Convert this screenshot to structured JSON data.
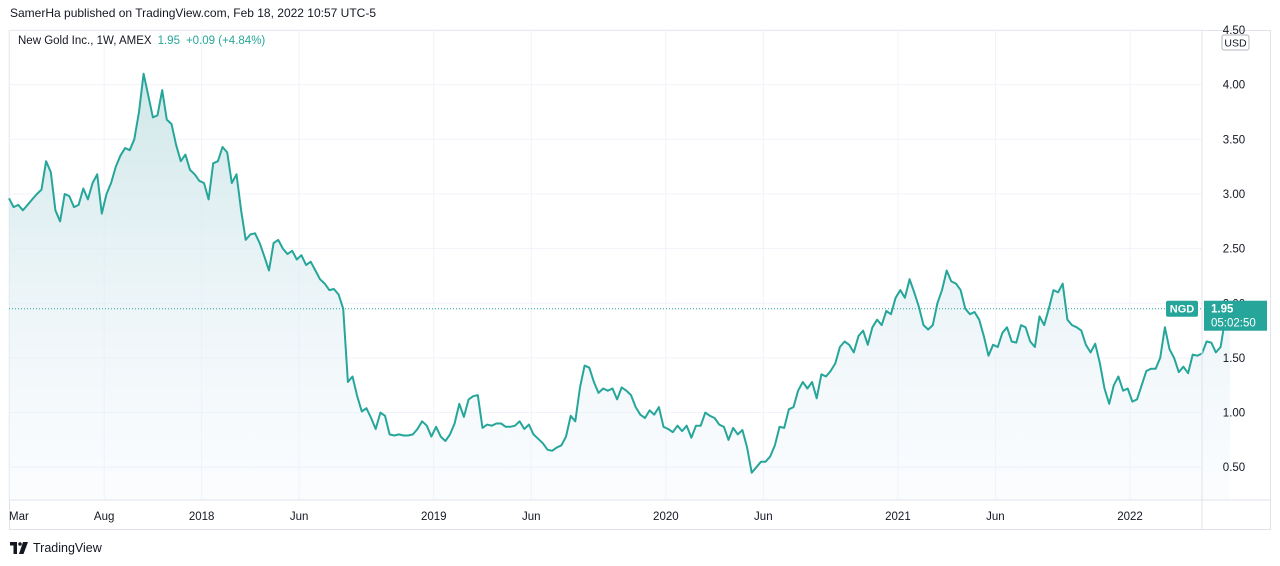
{
  "published_line": "SamerHa published on TradingView.com, Feb 18, 2022 10:57 UTC-5",
  "legend": {
    "symbol": "New Gold Inc., 1W, AMEX",
    "last": "1.95",
    "change": "+0.09 (+4.84%)"
  },
  "footer": {
    "brand": "TradingView"
  },
  "colors": {
    "line": "#26a69a",
    "fill_top": "#cfe8e8",
    "fill_bottom": "#ffffff",
    "grid": "#f0f3fa",
    "axis_text": "#131722",
    "label_bg": "#26a69a"
  },
  "chart_data": {
    "type": "area",
    "currency": "USD",
    "ylim": [
      0.2,
      4.5
    ],
    "yticks": [
      0.5,
      1.0,
      1.5,
      2.0,
      2.5,
      3.0,
      3.5,
      4.0,
      4.5
    ],
    "ytick_labels": [
      "0.50",
      "1.00",
      "1.50",
      "2.00",
      "2.50",
      "3.00",
      "3.50",
      "4.00",
      "4.50"
    ],
    "xlim": [
      2017.17,
      2022.31
    ],
    "xticks": [
      {
        "label": "Mar",
        "t": 2017.17
      },
      {
        "label": "Aug",
        "t": 2017.58
      },
      {
        "label": "2018",
        "t": 2018.0
      },
      {
        "label": "Jun",
        "t": 2018.42
      },
      {
        "label": "2019",
        "t": 2019.0
      },
      {
        "label": "Jun",
        "t": 2019.42
      },
      {
        "label": "2020",
        "t": 2020.0
      },
      {
        "label": "Jun",
        "t": 2020.42
      },
      {
        "label": "2021",
        "t": 2021.0
      },
      {
        "label": "Jun",
        "t": 2021.42
      },
      {
        "label": "2022",
        "t": 2022.0
      }
    ],
    "price_label": {
      "symbol": "NGD",
      "price": "1.95",
      "countdown": "05:02:50",
      "value": 1.95
    },
    "series": [
      {
        "values": [
          [
            2017.17,
            2.96
          ],
          [
            2017.19,
            2.88
          ],
          [
            2017.21,
            2.9
          ],
          [
            2017.23,
            2.85
          ],
          [
            2017.25,
            2.9
          ],
          [
            2017.27,
            2.95
          ],
          [
            2017.29,
            3.0
          ],
          [
            2017.31,
            3.04
          ],
          [
            2017.33,
            3.3
          ],
          [
            2017.35,
            3.2
          ],
          [
            2017.37,
            2.85
          ],
          [
            2017.39,
            2.75
          ],
          [
            2017.41,
            3.0
          ],
          [
            2017.43,
            2.98
          ],
          [
            2017.45,
            2.88
          ],
          [
            2017.47,
            2.9
          ],
          [
            2017.49,
            3.05
          ],
          [
            2017.51,
            2.95
          ],
          [
            2017.53,
            3.1
          ],
          [
            2017.55,
            3.18
          ],
          [
            2017.57,
            2.82
          ],
          [
            2017.59,
            3.0
          ],
          [
            2017.61,
            3.1
          ],
          [
            2017.63,
            3.25
          ],
          [
            2017.65,
            3.35
          ],
          [
            2017.67,
            3.42
          ],
          [
            2017.69,
            3.4
          ],
          [
            2017.71,
            3.5
          ],
          [
            2017.73,
            3.75
          ],
          [
            2017.75,
            4.1
          ],
          [
            2017.77,
            3.9
          ],
          [
            2017.79,
            3.7
          ],
          [
            2017.81,
            3.72
          ],
          [
            2017.83,
            3.95
          ],
          [
            2017.85,
            3.68
          ],
          [
            2017.87,
            3.64
          ],
          [
            2017.89,
            3.45
          ],
          [
            2017.91,
            3.3
          ],
          [
            2017.93,
            3.36
          ],
          [
            2017.95,
            3.22
          ],
          [
            2017.97,
            3.18
          ],
          [
            2017.99,
            3.12
          ],
          [
            2018.01,
            3.1
          ],
          [
            2018.03,
            2.95
          ],
          [
            2018.05,
            3.28
          ],
          [
            2018.07,
            3.3
          ],
          [
            2018.09,
            3.43
          ],
          [
            2018.11,
            3.38
          ],
          [
            2018.13,
            3.1
          ],
          [
            2018.15,
            3.18
          ],
          [
            2018.17,
            2.85
          ],
          [
            2018.19,
            2.58
          ],
          [
            2018.21,
            2.63
          ],
          [
            2018.23,
            2.64
          ],
          [
            2018.25,
            2.55
          ],
          [
            2018.27,
            2.43
          ],
          [
            2018.29,
            2.3
          ],
          [
            2018.31,
            2.55
          ],
          [
            2018.33,
            2.58
          ],
          [
            2018.35,
            2.5
          ],
          [
            2018.37,
            2.45
          ],
          [
            2018.39,
            2.48
          ],
          [
            2018.41,
            2.4
          ],
          [
            2018.43,
            2.44
          ],
          [
            2018.45,
            2.35
          ],
          [
            2018.47,
            2.38
          ],
          [
            2018.49,
            2.3
          ],
          [
            2018.51,
            2.22
          ],
          [
            2018.53,
            2.18
          ],
          [
            2018.55,
            2.12
          ],
          [
            2018.57,
            2.13
          ],
          [
            2018.59,
            2.08
          ],
          [
            2018.61,
            1.95
          ],
          [
            2018.63,
            1.28
          ],
          [
            2018.65,
            1.33
          ],
          [
            2018.67,
            1.15
          ],
          [
            2018.69,
            1.01
          ],
          [
            2018.71,
            1.04
          ],
          [
            2018.73,
            0.95
          ],
          [
            2018.75,
            0.85
          ],
          [
            2018.77,
            1.0
          ],
          [
            2018.79,
            0.97
          ],
          [
            2018.81,
            0.8
          ],
          [
            2018.83,
            0.79
          ],
          [
            2018.85,
            0.8
          ],
          [
            2018.87,
            0.79
          ],
          [
            2018.89,
            0.79
          ],
          [
            2018.91,
            0.8
          ],
          [
            2018.93,
            0.85
          ],
          [
            2018.95,
            0.92
          ],
          [
            2018.97,
            0.88
          ],
          [
            2018.99,
            0.78
          ],
          [
            2019.01,
            0.87
          ],
          [
            2019.03,
            0.78
          ],
          [
            2019.05,
            0.74
          ],
          [
            2019.07,
            0.8
          ],
          [
            2019.09,
            0.9
          ],
          [
            2019.11,
            1.08
          ],
          [
            2019.13,
            0.96
          ],
          [
            2019.15,
            1.12
          ],
          [
            2019.17,
            1.15
          ],
          [
            2019.19,
            1.16
          ],
          [
            2019.21,
            0.86
          ],
          [
            2019.23,
            0.89
          ],
          [
            2019.25,
            0.88
          ],
          [
            2019.27,
            0.9
          ],
          [
            2019.29,
            0.9
          ],
          [
            2019.31,
            0.87
          ],
          [
            2019.33,
            0.87
          ],
          [
            2019.35,
            0.88
          ],
          [
            2019.37,
            0.92
          ],
          [
            2019.39,
            0.85
          ],
          [
            2019.41,
            0.89
          ],
          [
            2019.43,
            0.8
          ],
          [
            2019.45,
            0.76
          ],
          [
            2019.47,
            0.72
          ],
          [
            2019.49,
            0.66
          ],
          [
            2019.51,
            0.65
          ],
          [
            2019.53,
            0.68
          ],
          [
            2019.55,
            0.7
          ],
          [
            2019.57,
            0.78
          ],
          [
            2019.59,
            0.97
          ],
          [
            2019.61,
            0.92
          ],
          [
            2019.63,
            1.23
          ],
          [
            2019.65,
            1.43
          ],
          [
            2019.67,
            1.41
          ],
          [
            2019.69,
            1.28
          ],
          [
            2019.71,
            1.18
          ],
          [
            2019.73,
            1.22
          ],
          [
            2019.75,
            1.2
          ],
          [
            2019.77,
            1.22
          ],
          [
            2019.79,
            1.12
          ],
          [
            2019.81,
            1.23
          ],
          [
            2019.83,
            1.2
          ],
          [
            2019.85,
            1.16
          ],
          [
            2019.87,
            1.05
          ],
          [
            2019.89,
            0.98
          ],
          [
            2019.91,
            0.95
          ],
          [
            2019.93,
            1.02
          ],
          [
            2019.95,
            0.98
          ],
          [
            2019.97,
            1.05
          ],
          [
            2019.99,
            0.87
          ],
          [
            2020.01,
            0.85
          ],
          [
            2020.03,
            0.82
          ],
          [
            2020.05,
            0.88
          ],
          [
            2020.07,
            0.83
          ],
          [
            2020.09,
            0.88
          ],
          [
            2020.11,
            0.77
          ],
          [
            2020.13,
            0.88
          ],
          [
            2020.15,
            0.88
          ],
          [
            2020.17,
            1.0
          ],
          [
            2020.19,
            0.97
          ],
          [
            2020.21,
            0.95
          ],
          [
            2020.23,
            0.89
          ],
          [
            2020.25,
            0.87
          ],
          [
            2020.27,
            0.75
          ],
          [
            2020.29,
            0.86
          ],
          [
            2020.31,
            0.8
          ],
          [
            2020.33,
            0.84
          ],
          [
            2020.35,
            0.68
          ],
          [
            2020.37,
            0.45
          ],
          [
            2020.39,
            0.5
          ],
          [
            2020.41,
            0.55
          ],
          [
            2020.43,
            0.55
          ],
          [
            2020.45,
            0.6
          ],
          [
            2020.47,
            0.7
          ],
          [
            2020.49,
            0.87
          ],
          [
            2020.51,
            0.86
          ],
          [
            2020.53,
            1.03
          ],
          [
            2020.55,
            1.05
          ],
          [
            2020.57,
            1.2
          ],
          [
            2020.59,
            1.28
          ],
          [
            2020.61,
            1.22
          ],
          [
            2020.63,
            1.28
          ],
          [
            2020.65,
            1.13
          ],
          [
            2020.67,
            1.35
          ],
          [
            2020.69,
            1.33
          ],
          [
            2020.71,
            1.38
          ],
          [
            2020.73,
            1.45
          ],
          [
            2020.75,
            1.6
          ],
          [
            2020.77,
            1.65
          ],
          [
            2020.79,
            1.62
          ],
          [
            2020.81,
            1.55
          ],
          [
            2020.83,
            1.7
          ],
          [
            2020.85,
            1.75
          ],
          [
            2020.87,
            1.62
          ],
          [
            2020.89,
            1.78
          ],
          [
            2020.91,
            1.85
          ],
          [
            2020.93,
            1.8
          ],
          [
            2020.95,
            1.93
          ],
          [
            2020.97,
            1.9
          ],
          [
            2020.99,
            2.05
          ],
          [
            2021.01,
            2.12
          ],
          [
            2021.03,
            2.05
          ],
          [
            2021.05,
            2.22
          ],
          [
            2021.07,
            2.1
          ],
          [
            2021.09,
            1.97
          ],
          [
            2021.11,
            1.8
          ],
          [
            2021.13,
            1.76
          ],
          [
            2021.15,
            1.8
          ],
          [
            2021.17,
            2.0
          ],
          [
            2021.19,
            2.12
          ],
          [
            2021.21,
            2.3
          ],
          [
            2021.23,
            2.2
          ],
          [
            2021.25,
            2.18
          ],
          [
            2021.27,
            2.12
          ],
          [
            2021.29,
            1.95
          ],
          [
            2021.31,
            1.9
          ],
          [
            2021.33,
            1.92
          ],
          [
            2021.35,
            1.85
          ],
          [
            2021.37,
            1.7
          ],
          [
            2021.39,
            1.52
          ],
          [
            2021.41,
            1.62
          ],
          [
            2021.43,
            1.6
          ],
          [
            2021.45,
            1.73
          ],
          [
            2021.47,
            1.78
          ],
          [
            2021.49,
            1.65
          ],
          [
            2021.51,
            1.64
          ],
          [
            2021.53,
            1.8
          ],
          [
            2021.55,
            1.78
          ],
          [
            2021.57,
            1.65
          ],
          [
            2021.59,
            1.6
          ],
          [
            2021.61,
            1.88
          ],
          [
            2021.63,
            1.8
          ],
          [
            2021.65,
            1.95
          ],
          [
            2021.67,
            2.12
          ],
          [
            2021.69,
            2.1
          ],
          [
            2021.71,
            2.18
          ],
          [
            2021.73,
            1.85
          ],
          [
            2021.75,
            1.8
          ],
          [
            2021.77,
            1.78
          ],
          [
            2021.79,
            1.75
          ],
          [
            2021.81,
            1.62
          ],
          [
            2021.83,
            1.55
          ],
          [
            2021.85,
            1.63
          ],
          [
            2021.87,
            1.45
          ],
          [
            2021.89,
            1.22
          ],
          [
            2021.91,
            1.08
          ],
          [
            2021.93,
            1.25
          ],
          [
            2021.95,
            1.33
          ],
          [
            2021.97,
            1.2
          ],
          [
            2021.99,
            1.22
          ],
          [
            2022.01,
            1.1
          ],
          [
            2022.03,
            1.12
          ],
          [
            2022.05,
            1.25
          ],
          [
            2022.07,
            1.38
          ],
          [
            2022.09,
            1.4
          ],
          [
            2022.11,
            1.4
          ],
          [
            2022.13,
            1.5
          ],
          [
            2022.15,
            1.78
          ],
          [
            2022.17,
            1.58
          ],
          [
            2022.19,
            1.5
          ],
          [
            2022.21,
            1.37
          ],
          [
            2022.23,
            1.42
          ],
          [
            2022.25,
            1.36
          ],
          [
            2022.27,
            1.53
          ],
          [
            2022.29,
            1.52
          ],
          [
            2022.31,
            1.54
          ],
          [
            2022.33,
            1.65
          ],
          [
            2022.35,
            1.64
          ],
          [
            2022.37,
            1.55
          ],
          [
            2022.39,
            1.6
          ],
          [
            2022.41,
            1.86
          ],
          [
            2022.43,
            1.95
          ]
        ]
      }
    ]
  }
}
